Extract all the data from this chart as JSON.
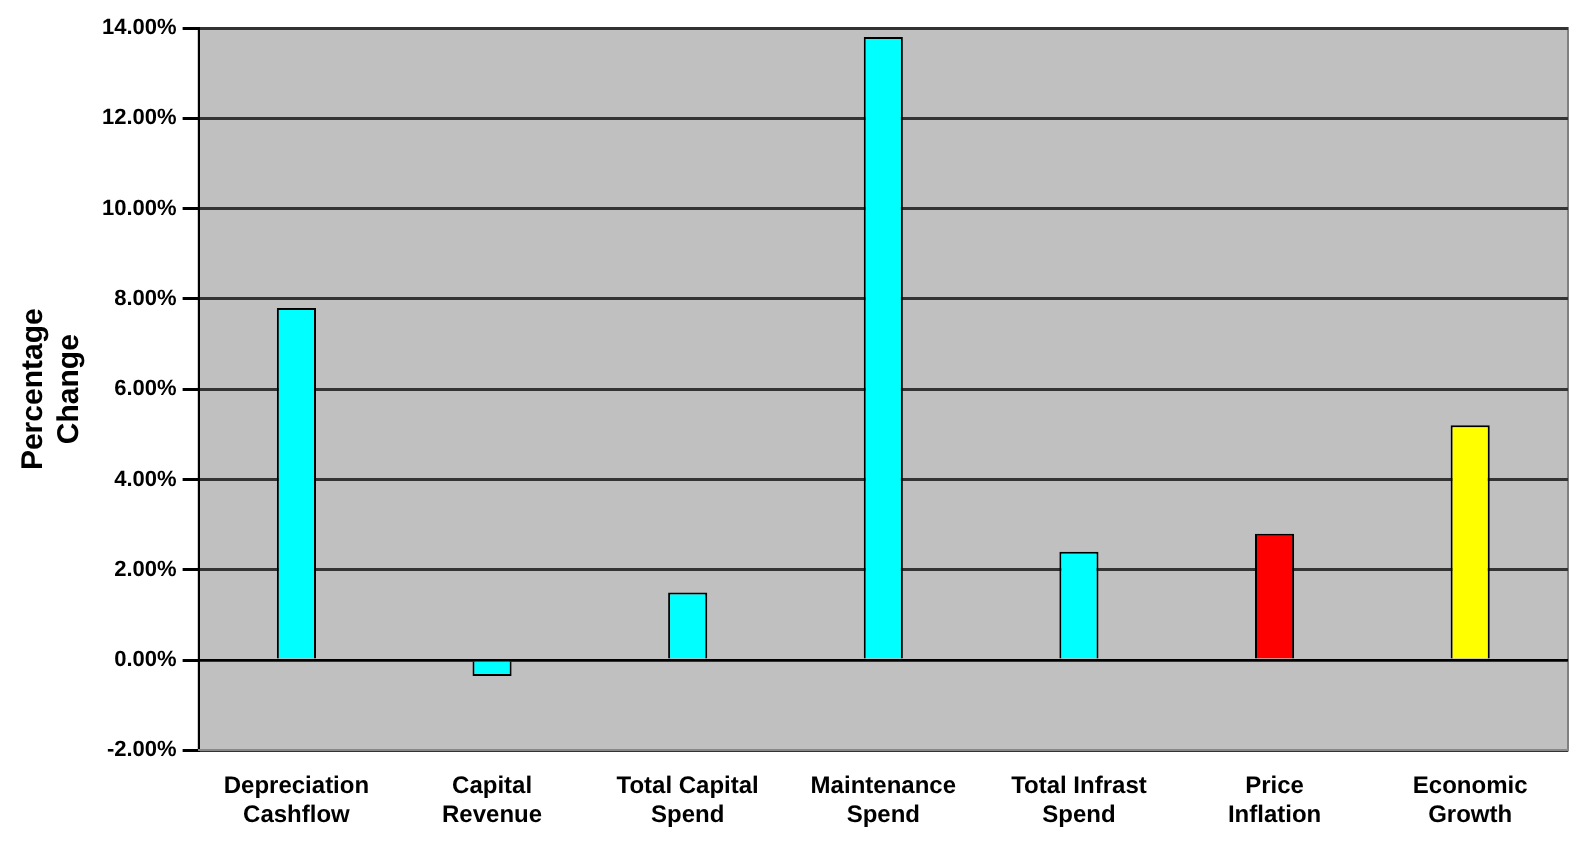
{
  "chart_data": {
    "type": "bar",
    "ylabel": "Percentage Change",
    "categories": [
      [
        "Depreciation",
        "Cashflow"
      ],
      [
        "Capital",
        "Revenue"
      ],
      [
        "Total Capital",
        "Spend"
      ],
      [
        "Maintenance",
        "Spend"
      ],
      [
        "Total Infrast",
        "Spend"
      ],
      [
        "Price",
        "Inflation"
      ],
      [
        "Economic",
        "Growth"
      ]
    ],
    "values": [
      7.8,
      -0.35,
      1.5,
      13.8,
      2.4,
      2.8,
      5.2
    ],
    "colors": [
      "#00ffff",
      "#00ffff",
      "#00ffff",
      "#00ffff",
      "#00ffff",
      "#ff0000",
      "#ffff00"
    ],
    "ylim": [
      -2,
      14
    ],
    "yticks": [
      {
        "value": -2,
        "label": "-2.00%"
      },
      {
        "value": 0,
        "label": "0.00%"
      },
      {
        "value": 2,
        "label": "2.00%"
      },
      {
        "value": 4,
        "label": "4.00%"
      },
      {
        "value": 6,
        "label": "6.00%"
      },
      {
        "value": 8,
        "label": "8.00%"
      },
      {
        "value": 10,
        "label": "10.00%"
      },
      {
        "value": 12,
        "label": "12.00%"
      },
      {
        "value": 14,
        "label": "14.00%"
      }
    ],
    "grid": "y",
    "legend": false
  }
}
